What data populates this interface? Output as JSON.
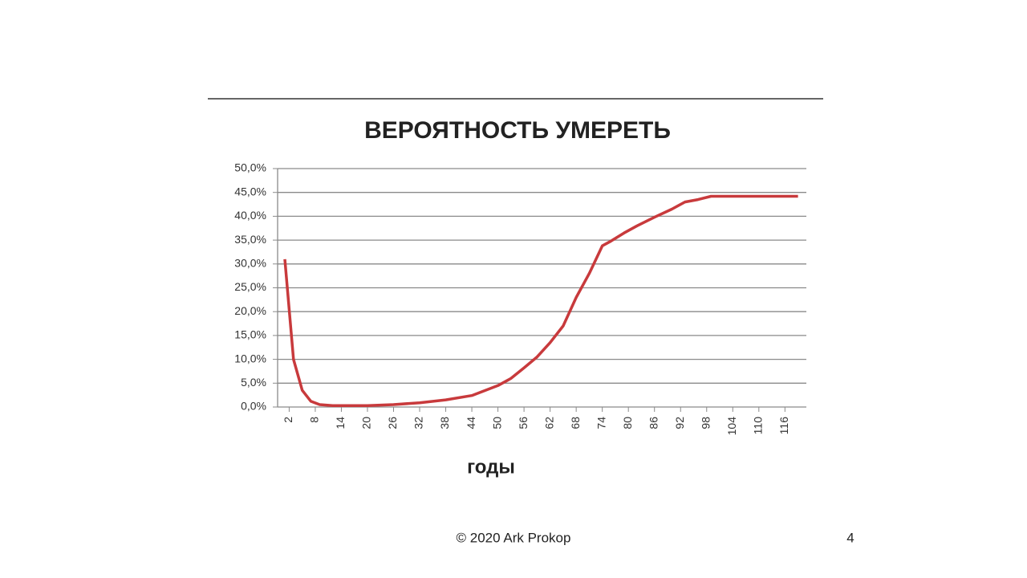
{
  "chart_data": {
    "type": "line",
    "title": "ВЕРОЯТНОСТЬ УМЕРЕТЬ",
    "x_label": "годы",
    "x": [
      1,
      3,
      5,
      7,
      9,
      12,
      20,
      26,
      32,
      38,
      44,
      50,
      53,
      56,
      59,
      62,
      65,
      68,
      71,
      74,
      76,
      79,
      82,
      86,
      90,
      93,
      96,
      99,
      110,
      119
    ],
    "values": [
      31,
      10,
      3.5,
      1.2,
      0.5,
      0.3,
      0.3,
      0.5,
      0.9,
      1.5,
      2.4,
      4.5,
      6,
      8.2,
      10.5,
      13.5,
      17,
      23,
      28,
      33.8,
      34.8,
      36.5,
      38,
      39.8,
      41.5,
      43,
      43.5,
      44.2,
      44.2,
      44.2
    ],
    "color": "#c83a3c",
    "xlim": [
      1,
      120
    ],
    "xticks": [
      2,
      8,
      14,
      20,
      26,
      32,
      38,
      44,
      50,
      56,
      62,
      68,
      74,
      80,
      86,
      92,
      98,
      104,
      110,
      116
    ],
    "ylim": [
      0,
      50
    ],
    "yticks": [
      {
        "value": 0,
        "label": "0,0%"
      },
      {
        "value": 5,
        "label": "5,0%"
      },
      {
        "value": 10,
        "label": "10,0%"
      },
      {
        "value": 15,
        "label": "15,0%"
      },
      {
        "value": 20,
        "label": "20,0%"
      },
      {
        "value": 25,
        "label": "25,0%"
      },
      {
        "value": 30,
        "label": "30,0%"
      },
      {
        "value": 35,
        "label": "35,0%"
      },
      {
        "value": 40,
        "label": "40,0%"
      },
      {
        "value": 45,
        "label": "45,0%"
      },
      {
        "value": 50,
        "label": "50,0%"
      }
    ],
    "grid": true
  },
  "footer": {
    "copyright": "© 2020 Ark Prokop",
    "page_number": 4
  }
}
